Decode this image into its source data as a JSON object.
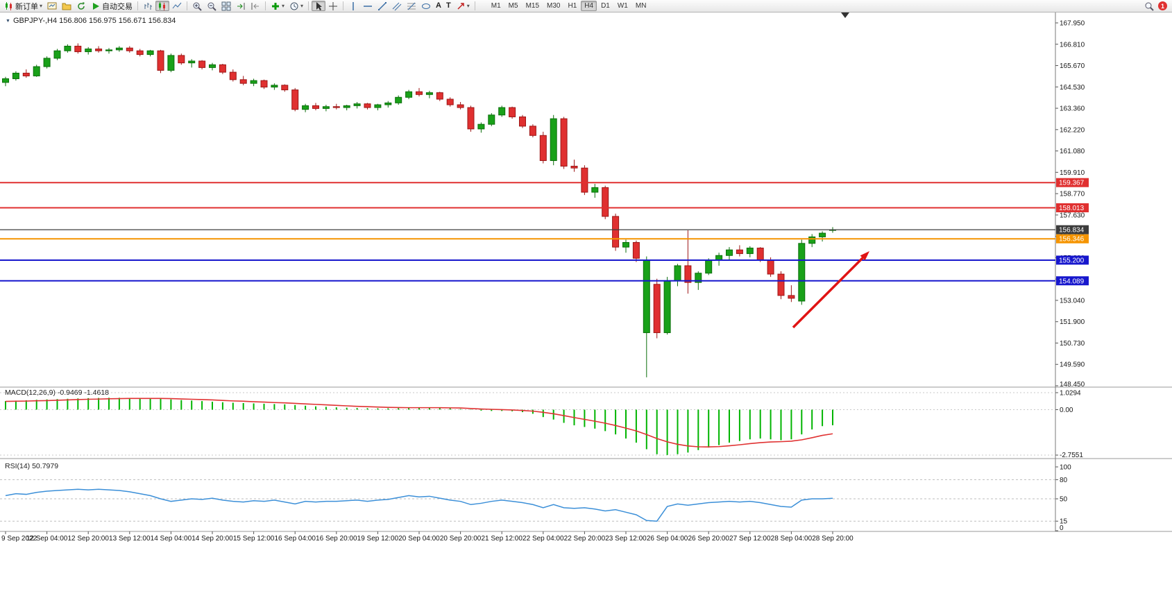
{
  "toolbar": {
    "new_order": "新订单",
    "autotrading": "自动交易",
    "text_tool": "A",
    "text_label_tool": "T",
    "timeframes": [
      "M1",
      "M5",
      "M15",
      "M30",
      "H1",
      "H4",
      "D1",
      "W1",
      "MN"
    ],
    "active_timeframe": "H4",
    "notification_count": "1"
  },
  "chart_header": {
    "title": "GBPJPY-,H4 156.806 156.975 156.671 156.834",
    "symbol": "GBPJPY-",
    "period": "H4",
    "open": "156.806",
    "high": "156.975",
    "low": "156.671",
    "close": "156.834"
  },
  "price_axis": {
    "ticks": [
      "167.950",
      "166.810",
      "165.670",
      "164.530",
      "163.360",
      "162.220",
      "161.080",
      "159.910",
      "158.770",
      "157.630",
      "156.460",
      "155.320",
      "154.180",
      "153.040",
      "151.900",
      "150.730",
      "149.590",
      "148.450"
    ],
    "top_value": 167.95,
    "bottom_value": 148.45
  },
  "levels": [
    {
      "label": "159.367",
      "value": 159.367,
      "color": "#e03030",
      "current": false
    },
    {
      "label": "158.013",
      "value": 158.013,
      "color": "#e03030",
      "current": false
    },
    {
      "label": "156.834",
      "value": 156.834,
      "color": "#3c3c3c",
      "current": true
    },
    {
      "label": "156.346",
      "value": 156.346,
      "color": "#f59400",
      "current": false
    },
    {
      "label": "155.200",
      "value": 155.2,
      "color": "#1717cd",
      "current": false
    },
    {
      "label": "154.089",
      "value": 154.089,
      "color": "#1717cd",
      "current": false
    }
  ],
  "time_axis": [
    "9 Sep 2022",
    "12 Sep 04:00",
    "12 Sep 20:00",
    "13 Sep 12:00",
    "14 Sep 04:00",
    "14 Sep 20:00",
    "15 Sep 12:00",
    "16 Sep 04:00",
    "16 Sep 20:00",
    "19 Sep 12:00",
    "20 Sep 04:00",
    "20 Sep 20:00",
    "21 Sep 12:00",
    "22 Sep 04:00",
    "22 Sep 20:00",
    "23 Sep 12:00",
    "26 Sep 04:00",
    "26 Sep 20:00",
    "27 Sep 12:00",
    "28 Sep 04:00",
    "28 Sep 20:00"
  ],
  "chart_data": [
    {
      "type": "candlestick",
      "title": "GBPJPY- H4",
      "ylim": [
        148.45,
        167.95
      ],
      "up_color": "#19a119",
      "down_color": "#e03030",
      "ohlc": [
        [
          164.75,
          165.05,
          164.55,
          164.95
        ],
        [
          164.95,
          165.35,
          164.85,
          165.25
        ],
        [
          165.25,
          165.45,
          165.0,
          165.1
        ],
        [
          165.1,
          165.7,
          165.05,
          165.6
        ],
        [
          165.6,
          166.15,
          165.5,
          166.05
        ],
        [
          166.05,
          166.55,
          165.95,
          166.45
        ],
        [
          166.45,
          166.8,
          166.35,
          166.7
        ],
        [
          166.7,
          166.85,
          166.3,
          166.4
        ],
        [
          166.4,
          166.65,
          166.25,
          166.55
        ],
        [
          166.55,
          166.7,
          166.35,
          166.45
        ],
        [
          166.45,
          166.6,
          166.3,
          166.5
        ],
        [
          166.5,
          166.7,
          166.4,
          166.6
        ],
        [
          166.6,
          166.7,
          166.35,
          166.45
        ],
        [
          166.45,
          166.55,
          166.15,
          166.25
        ],
        [
          166.25,
          166.5,
          166.15,
          166.45
        ],
        [
          166.45,
          166.5,
          165.25,
          165.4
        ],
        [
          165.4,
          166.3,
          165.3,
          166.2
        ],
        [
          166.2,
          166.3,
          165.7,
          165.8
        ],
        [
          165.8,
          166.0,
          165.55,
          165.9
        ],
        [
          165.9,
          165.95,
          165.45,
          165.55
        ],
        [
          165.55,
          165.8,
          165.4,
          165.7
        ],
        [
          165.7,
          165.75,
          165.2,
          165.3
        ],
        [
          165.3,
          165.45,
          164.8,
          164.9
        ],
        [
          164.9,
          165.1,
          164.6,
          164.7
        ],
        [
          164.7,
          164.95,
          164.55,
          164.85
        ],
        [
          164.85,
          164.9,
          164.4,
          164.5
        ],
        [
          164.5,
          164.7,
          164.35,
          164.6
        ],
        [
          164.6,
          164.65,
          164.25,
          164.35
        ],
        [
          164.35,
          164.45,
          163.2,
          163.3
        ],
        [
          163.3,
          163.6,
          163.15,
          163.5
        ],
        [
          163.5,
          163.65,
          163.25,
          163.35
        ],
        [
          163.35,
          163.55,
          163.2,
          163.45
        ],
        [
          163.45,
          163.6,
          163.3,
          163.4
        ],
        [
          163.4,
          163.55,
          163.25,
          163.5
        ],
        [
          163.5,
          163.7,
          163.35,
          163.6
        ],
        [
          163.6,
          163.65,
          163.3,
          163.4
        ],
        [
          163.4,
          163.6,
          163.25,
          163.55
        ],
        [
          163.55,
          163.75,
          163.4,
          163.65
        ],
        [
          163.65,
          164.05,
          163.55,
          163.95
        ],
        [
          163.95,
          164.35,
          163.85,
          164.25
        ],
        [
          164.25,
          164.45,
          164.0,
          164.1
        ],
        [
          164.1,
          164.3,
          163.9,
          164.2
        ],
        [
          164.2,
          164.25,
          163.75,
          163.85
        ],
        [
          163.85,
          163.95,
          163.45,
          163.55
        ],
        [
          163.55,
          163.7,
          163.3,
          163.4
        ],
        [
          163.4,
          163.5,
          162.1,
          162.25
        ],
        [
          162.25,
          162.6,
          162.05,
          162.5
        ],
        [
          162.5,
          163.1,
          162.4,
          163.0
        ],
        [
          163.0,
          163.5,
          162.9,
          163.4
        ],
        [
          163.4,
          163.45,
          162.8,
          162.9
        ],
        [
          162.9,
          163.0,
          162.3,
          162.4
        ],
        [
          162.4,
          162.5,
          161.8,
          161.9
        ],
        [
          161.9,
          162.1,
          160.4,
          160.55
        ],
        [
          160.55,
          163.0,
          160.3,
          162.8
        ],
        [
          162.8,
          162.9,
          160.1,
          160.25
        ],
        [
          160.25,
          160.6,
          159.95,
          160.15
        ],
        [
          160.15,
          160.3,
          158.7,
          158.85
        ],
        [
          158.85,
          159.3,
          158.55,
          159.1
        ],
        [
          159.1,
          159.2,
          157.4,
          157.55
        ],
        [
          157.55,
          157.7,
          155.7,
          155.9
        ],
        [
          155.9,
          156.3,
          155.6,
          156.15
        ],
        [
          156.15,
          156.25,
          155.1,
          155.3
        ],
        [
          151.3,
          155.4,
          148.9,
          155.2
        ],
        [
          153.9,
          154.2,
          151.0,
          151.3
        ],
        [
          151.3,
          154.3,
          151.2,
          154.1
        ],
        [
          154.1,
          155.0,
          153.8,
          154.9
        ],
        [
          154.9,
          156.8,
          153.4,
          154.0
        ],
        [
          154.0,
          154.6,
          153.6,
          154.5
        ],
        [
          154.5,
          155.3,
          154.4,
          155.2
        ],
        [
          155.2,
          155.6,
          154.9,
          155.45
        ],
        [
          155.45,
          155.9,
          155.2,
          155.75
        ],
        [
          155.75,
          156.0,
          155.4,
          155.55
        ],
        [
          155.55,
          155.95,
          155.35,
          155.85
        ],
        [
          155.85,
          155.9,
          155.1,
          155.2
        ],
        [
          155.2,
          155.35,
          154.3,
          154.45
        ],
        [
          154.45,
          154.6,
          153.1,
          153.3
        ],
        [
          153.3,
          153.85,
          152.95,
          153.15
        ],
        [
          153.0,
          156.3,
          152.8,
          156.1
        ],
        [
          156.1,
          156.6,
          155.9,
          156.45
        ],
        [
          156.45,
          156.75,
          156.2,
          156.65
        ],
        [
          156.806,
          156.975,
          156.671,
          156.834
        ]
      ]
    },
    {
      "type": "macd",
      "label": "MACD(12,26,9) -0.9469 -1.4618",
      "name": "MACD(12,26,9)",
      "value": "-0.9469",
      "signal_value": "-1.4618",
      "ticks": [
        "1.0294",
        "0.00",
        "-2.7551"
      ],
      "tick_values": [
        1.0294,
        0,
        -2.7551
      ],
      "histogram_color": "#00b400",
      "signal_color": "#e03232",
      "histogram": [
        0.52,
        0.55,
        0.57,
        0.6,
        0.62,
        0.64,
        0.66,
        0.68,
        0.7,
        0.71,
        0.72,
        0.72,
        0.71,
        0.7,
        0.68,
        0.65,
        0.62,
        0.58,
        0.55,
        0.52,
        0.48,
        0.45,
        0.42,
        0.4,
        0.38,
        0.36,
        0.34,
        0.32,
        0.28,
        0.24,
        0.2,
        0.17,
        0.14,
        0.12,
        0.1,
        0.09,
        0.08,
        0.08,
        0.09,
        0.1,
        0.11,
        0.12,
        0.11,
        0.08,
        0.04,
        -0.02,
        -0.06,
        -0.08,
        -0.08,
        -0.1,
        -0.15,
        -0.25,
        -0.45,
        -0.6,
        -0.8,
        -0.95,
        -1.05,
        -1.15,
        -1.3,
        -1.5,
        -1.75,
        -2.0,
        -2.4,
        -2.7,
        -2.75,
        -2.7,
        -2.6,
        -2.45,
        -2.3,
        -2.15,
        -2.0,
        -1.9,
        -1.8,
        -1.75,
        -1.8,
        -1.85,
        -1.8,
        -1.5,
        -1.2,
        -1.0,
        -0.9469
      ],
      "signal": [
        0.5,
        0.51,
        0.52,
        0.54,
        0.55,
        0.57,
        0.59,
        0.61,
        0.63,
        0.64,
        0.66,
        0.67,
        0.68,
        0.68,
        0.68,
        0.68,
        0.67,
        0.65,
        0.63,
        0.61,
        0.59,
        0.56,
        0.53,
        0.51,
        0.48,
        0.46,
        0.43,
        0.41,
        0.38,
        0.35,
        0.32,
        0.29,
        0.26,
        0.23,
        0.2,
        0.18,
        0.16,
        0.14,
        0.13,
        0.12,
        0.12,
        0.12,
        0.12,
        0.11,
        0.1,
        0.07,
        0.04,
        0.02,
        0.0,
        -0.02,
        -0.05,
        -0.09,
        -0.16,
        -0.25,
        -0.36,
        -0.48,
        -0.59,
        -0.7,
        -0.82,
        -0.96,
        -1.12,
        -1.29,
        -1.51,
        -1.75,
        -1.95,
        -2.1,
        -2.2,
        -2.25,
        -2.26,
        -2.24,
        -2.19,
        -2.13,
        -2.06,
        -2.0,
        -1.96,
        -1.94,
        -1.91,
        -1.83,
        -1.7,
        -1.56,
        -1.4618
      ]
    },
    {
      "type": "rsi",
      "label": "RSI(14) 50.7979",
      "name": "RSI(14)",
      "value": "50.7979",
      "ticks": [
        "100",
        "80",
        "50",
        "15",
        "0"
      ],
      "tick_values": [
        100,
        80,
        50,
        15,
        0
      ],
      "dashed_levels": [
        80,
        50,
        15
      ],
      "line_color": "#3b8fd8",
      "values": [
        55,
        58,
        57,
        60,
        62,
        63,
        64,
        65,
        64,
        65,
        64,
        63,
        61,
        58,
        55,
        50,
        46,
        48,
        50,
        49,
        51,
        48,
        46,
        45,
        47,
        46,
        48,
        45,
        42,
        46,
        45,
        46,
        46,
        47,
        48,
        46,
        48,
        49,
        52,
        55,
        53,
        54,
        51,
        48,
        46,
        41,
        43,
        46,
        48,
        46,
        44,
        41,
        36,
        41,
        36,
        35,
        36,
        34,
        31,
        33,
        29,
        25,
        16,
        15,
        38,
        42,
        40,
        42,
        44,
        45,
        46,
        45,
        46,
        44,
        41,
        38,
        37,
        48,
        50,
        50,
        50.7979
      ]
    }
  ],
  "annotation": {
    "type": "arrow",
    "direction": "up-right",
    "color": "#e01414"
  }
}
